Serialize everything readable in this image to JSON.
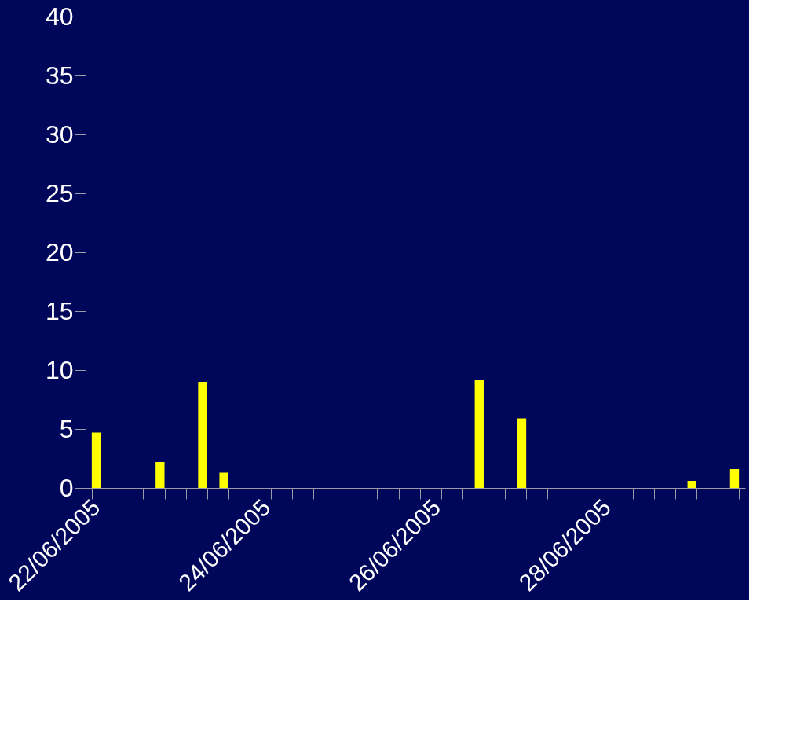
{
  "chart_data": {
    "type": "bar",
    "categories": [
      "22/06/2005",
      null,
      null,
      null,
      null,
      null,
      null,
      null,
      "24/06/2005",
      null,
      null,
      null,
      null,
      null,
      null,
      null,
      "26/06/2005",
      null,
      null,
      null,
      null,
      null,
      null,
      null,
      "28/06/2005",
      null,
      null,
      null,
      null,
      null,
      null
    ],
    "values": [
      4.7,
      0,
      0,
      2.2,
      0,
      9.0,
      1.3,
      0,
      0,
      0,
      0,
      0,
      0,
      0,
      0,
      0,
      0,
      0,
      9.2,
      0,
      5.9,
      0,
      0,
      0,
      0,
      0,
      0,
      0,
      0.6,
      0,
      1.6
    ],
    "color": "#ffff00",
    "ylim": [
      0,
      40
    ],
    "yticks": [
      0,
      5,
      10,
      15,
      20,
      25,
      30,
      35,
      40
    ],
    "grid": false
  }
}
